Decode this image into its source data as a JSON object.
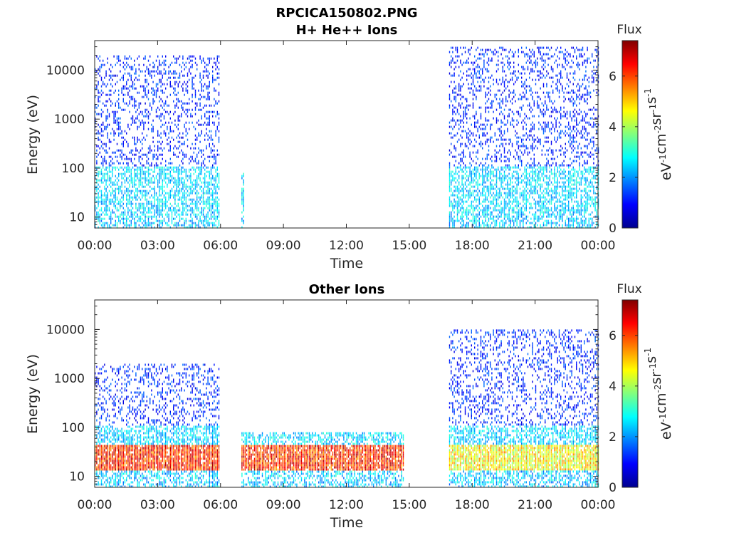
{
  "chart_data": [
    {
      "type": "heatmap",
      "title": "RPCICA150802.PNG",
      "subtitle": "H+ He++ Ions",
      "xlabel": "Time",
      "ylabel": "Energy (eV)",
      "y_scale": "log",
      "ylim": [
        6,
        40000
      ],
      "x_ticks": [
        "00:00",
        "03:00",
        "06:00",
        "09:00",
        "12:00",
        "15:00",
        "18:00",
        "21:00",
        "00:00"
      ],
      "y_ticks": [
        "10",
        "100",
        "1000",
        "10000"
      ],
      "xlim_hours": [
        0,
        24
      ],
      "colorbar": {
        "title": "Flux",
        "label": "eV-1cm-2sr-1s-1",
        "ticks": [
          "0",
          "2",
          "4",
          "6"
        ],
        "range": [
          0,
          7.4
        ],
        "colormap": "jet"
      },
      "data_segments": [
        {
          "start_hour": 0.0,
          "end_hour": 5.9,
          "energy_range_eV": [
            6,
            20000
          ],
          "flux_level": "low to medium (1-3)"
        },
        {
          "start_hour": 7.0,
          "end_hour": 7.1,
          "energy_range_eV": [
            6,
            80
          ],
          "flux_level": "medium (3)"
        },
        {
          "start_hour": 16.9,
          "end_hour": 24.0,
          "energy_range_eV": [
            6,
            30000
          ],
          "flux_level": "low to medium (1-3)"
        }
      ]
    },
    {
      "type": "heatmap",
      "title": "Other Ions",
      "xlabel": "Time",
      "ylabel": "Energy (eV)",
      "y_scale": "log",
      "ylim": [
        6,
        40000
      ],
      "x_ticks": [
        "00:00",
        "03:00",
        "06:00",
        "09:00",
        "12:00",
        "15:00",
        "18:00",
        "21:00",
        "00:00"
      ],
      "y_ticks": [
        "10",
        "100",
        "1000",
        "10000"
      ],
      "xlim_hours": [
        0,
        24
      ],
      "colorbar": {
        "title": "Flux",
        "label": "eV-1cm-2sr-1s-1",
        "ticks": [
          "0",
          "2",
          "4",
          "6"
        ],
        "range": [
          0,
          7.4
        ],
        "colormap": "jet"
      },
      "data_segments": [
        {
          "start_hour": 0.0,
          "end_hour": 5.9,
          "energy_range_eV": [
            6,
            2000
          ],
          "flux_level": "medium to high (3-6), peak near 15-40 eV"
        },
        {
          "start_hour": 7.0,
          "end_hour": 14.7,
          "energy_range_eV": [
            6,
            80
          ],
          "flux_level": "high (5-7), peak near 15-40 eV"
        },
        {
          "start_hour": 16.9,
          "end_hour": 24.0,
          "energy_range_eV": [
            6,
            10000
          ],
          "flux_level": "medium (3-5), peak near 15-40 eV"
        }
      ]
    }
  ]
}
